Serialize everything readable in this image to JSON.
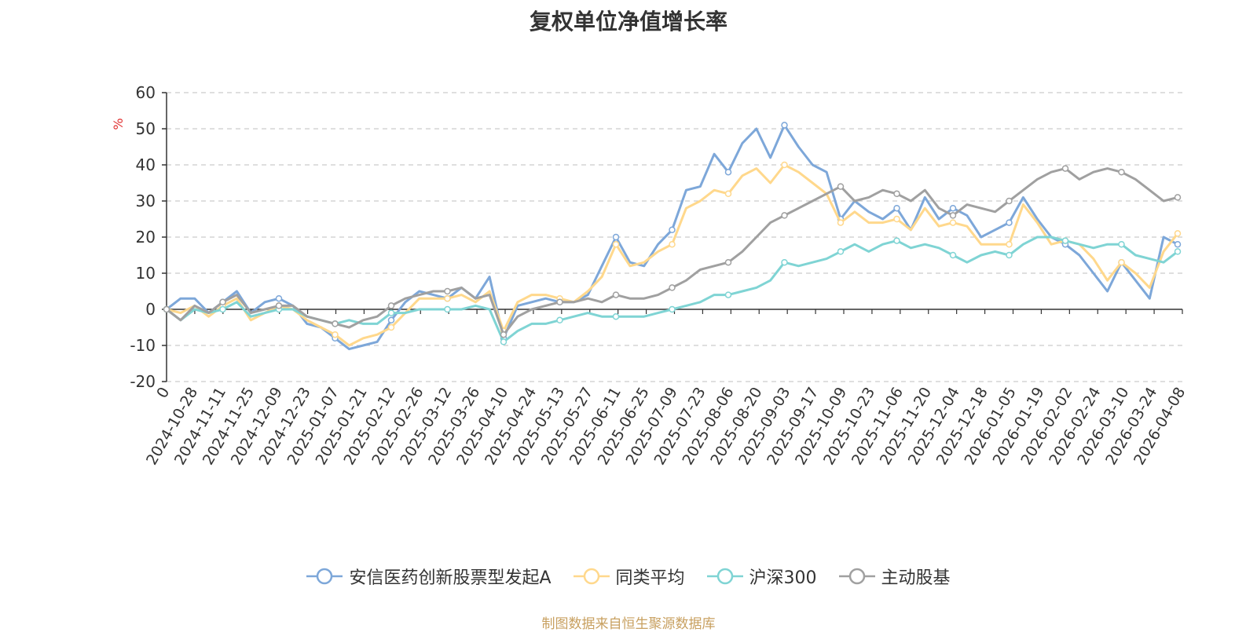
{
  "chart_data": {
    "type": "line",
    "title": "复权单位净值增长率",
    "ylabel": "%",
    "ylim": [
      -20,
      60
    ],
    "yticks": [
      -20,
      -10,
      0,
      10,
      20,
      30,
      40,
      50,
      60
    ],
    "grid": true,
    "legend_position": "bottom",
    "x_start": "0",
    "x_ticks": [
      "2024-10-28",
      "2024-11-11",
      "2024-11-25",
      "2024-12-09",
      "2024-12-23",
      "2025-01-07",
      "2025-01-21",
      "2025-02-12",
      "2025-02-26",
      "2025-03-12",
      "2025-03-26",
      "2025-04-10",
      "2025-04-24",
      "2025-05-13",
      "2025-05-27",
      "2025-06-11",
      "2025-06-25",
      "2025-07-09",
      "2025-07-23",
      "2025-08-06",
      "2025-08-20",
      "2025-09-03",
      "2025-09-17",
      "2025-10-09",
      "2025-10-23",
      "2025-11-06",
      "2025-11-20",
      "2025-12-04",
      "2025-12-18",
      "2026-01-05",
      "2026-01-19",
      "2026-02-02",
      "2026-02-24",
      "2026-03-10",
      "2026-03-24",
      "2026-04-08"
    ],
    "series": [
      {
        "name": "安信医药创新股票型发起A",
        "color": "#7da7d9",
        "values": [
          0,
          3,
          3,
          -1,
          2,
          5,
          -1,
          2,
          3,
          1,
          -4,
          -5,
          -8,
          -11,
          -10,
          -9,
          -3,
          2,
          5,
          4,
          3,
          6,
          3,
          9,
          -8,
          1,
          2,
          3,
          2,
          2,
          4,
          12,
          20,
          13,
          12,
          18,
          22,
          33,
          34,
          43,
          38,
          46,
          50,
          42,
          51,
          45,
          40,
          38,
          25,
          30,
          27,
          25,
          28,
          22,
          31,
          25,
          28,
          26,
          20,
          22,
          24,
          31,
          25,
          20,
          18,
          15,
          10,
          5,
          13,
          8,
          3,
          20,
          18
        ],
        "markers": [
          0,
          4,
          8,
          12,
          16,
          20,
          24,
          28,
          32,
          36,
          40,
          44,
          48,
          52,
          56,
          60,
          64,
          68,
          72
        ]
      },
      {
        "name": "同类平均",
        "color": "#ffd88c",
        "values": [
          0,
          -1,
          1,
          -2,
          1,
          3,
          -3,
          -1,
          1,
          0,
          -3,
          -5,
          -7,
          -10,
          -8,
          -7,
          -5,
          -1,
          3,
          3,
          3,
          4,
          2,
          5,
          -6,
          2,
          4,
          4,
          3,
          2,
          5,
          9,
          18,
          12,
          13,
          16,
          18,
          28,
          30,
          33,
          32,
          37,
          39,
          35,
          40,
          38,
          35,
          32,
          24,
          27,
          24,
          24,
          25,
          22,
          28,
          23,
          24,
          23,
          18,
          18,
          18,
          29,
          24,
          18,
          19,
          18,
          14,
          8,
          13,
          10,
          6,
          16,
          21
        ],
        "markers": [
          0,
          4,
          8,
          12,
          16,
          20,
          24,
          28,
          32,
          36,
          40,
          44,
          48,
          52,
          56,
          60,
          64,
          68,
          72
        ]
      },
      {
        "name": "沪深300",
        "color": "#7fd4d4",
        "values": [
          0,
          -3,
          0,
          -1,
          0,
          2,
          -2,
          -1,
          0,
          0,
          -2,
          -3,
          -4,
          -3,
          -4,
          -4,
          -1,
          -1,
          0,
          0,
          0,
          0,
          1,
          0,
          -9,
          -6,
          -4,
          -4,
          -3,
          -2,
          -1,
          -2,
          -2,
          -2,
          -2,
          -1,
          0,
          1,
          2,
          4,
          4,
          5,
          6,
          8,
          13,
          12,
          13,
          14,
          16,
          18,
          16,
          18,
          19,
          17,
          18,
          17,
          15,
          13,
          15,
          16,
          15,
          18,
          20,
          20,
          19,
          18,
          17,
          18,
          18,
          15,
          14,
          13,
          16
        ],
        "markers": [
          0,
          4,
          8,
          12,
          16,
          20,
          24,
          28,
          32,
          36,
          40,
          44,
          48,
          52,
          56,
          60,
          64,
          68,
          72
        ]
      },
      {
        "name": "主动股基",
        "color": "#a0a0a0",
        "values": [
          0,
          -3,
          1,
          -1,
          2,
          4,
          -1,
          0,
          1,
          1,
          -2,
          -3,
          -4,
          -5,
          -3,
          -2,
          1,
          3,
          4,
          5,
          5,
          6,
          3,
          4,
          -7,
          -2,
          0,
          1,
          2,
          2,
          3,
          2,
          4,
          3,
          3,
          4,
          6,
          8,
          11,
          12,
          13,
          16,
          20,
          24,
          26,
          28,
          30,
          32,
          34,
          30,
          31,
          33,
          32,
          30,
          33,
          28,
          26,
          29,
          28,
          27,
          30,
          33,
          36,
          38,
          39,
          36,
          38,
          39,
          38,
          36,
          33,
          30,
          31
        ],
        "markers": [
          0,
          4,
          8,
          12,
          16,
          20,
          24,
          28,
          32,
          36,
          40,
          44,
          48,
          52,
          56,
          60,
          64,
          68,
          72
        ]
      }
    ]
  },
  "source_note": "制图数据来自恒生聚源数据库"
}
